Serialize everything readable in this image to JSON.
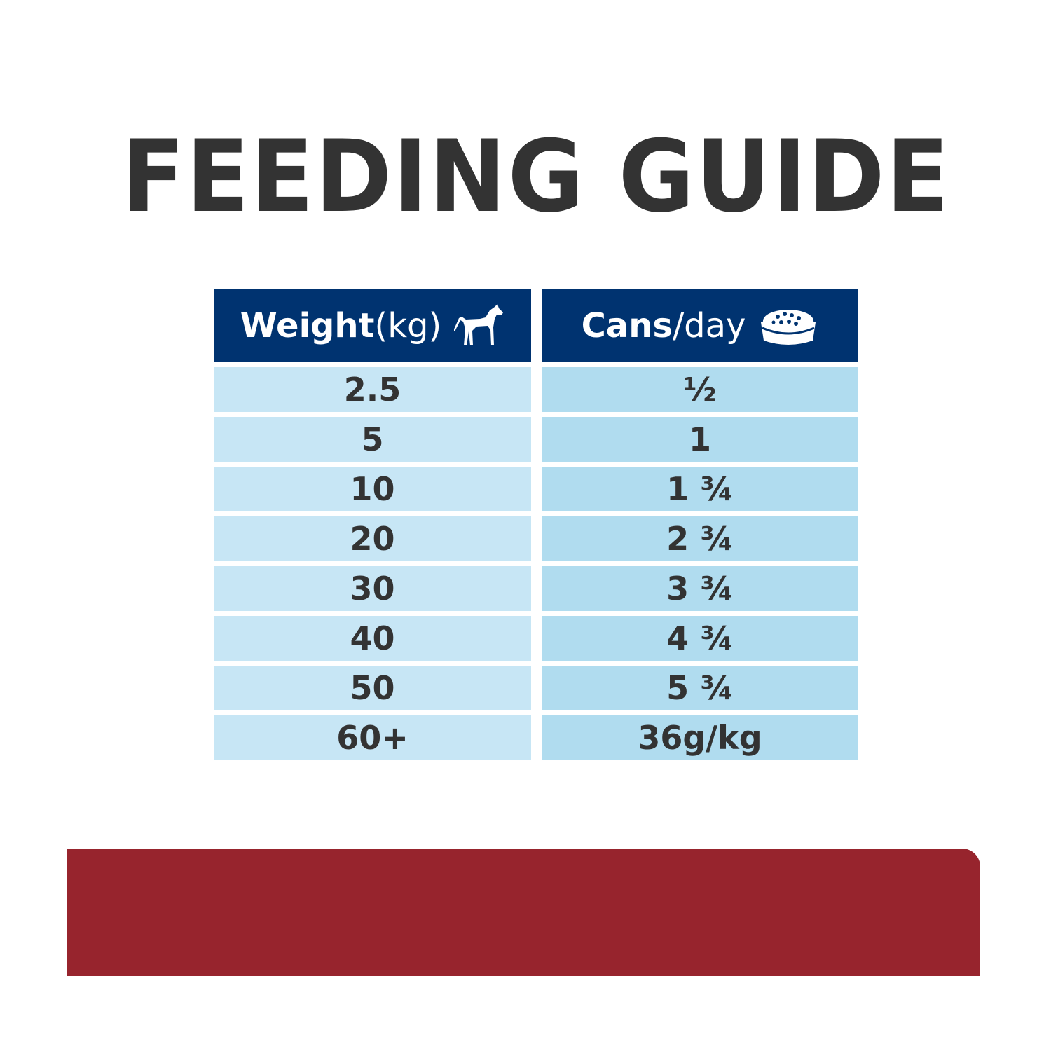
{
  "title": "FEEDING GUIDE",
  "table": {
    "weight_header": {
      "bold": "Weight",
      "light": " (kg)",
      "icon": "dog-icon"
    },
    "cans_header": {
      "bold": "Cans",
      "light": "/day",
      "icon": "food-bowl-icon"
    },
    "rows": [
      {
        "weight": "2.5",
        "cans": "½"
      },
      {
        "weight": "5",
        "cans": "1"
      },
      {
        "weight": "10",
        "cans": "1 ¾"
      },
      {
        "weight": "20",
        "cans": "2 ¾"
      },
      {
        "weight": "30",
        "cans": "3 ¾"
      },
      {
        "weight": "40",
        "cans": "4 ¾"
      },
      {
        "weight": "50",
        "cans": "5 ¾"
      },
      {
        "weight": "60+",
        "cans": "36g/kg"
      }
    ]
  },
  "colors": {
    "header_bg": "#003370",
    "left_cell_bg": "#c7e6f5",
    "right_cell_bg": "#b0dcef",
    "band": "#97242d",
    "text": "#333333"
  }
}
